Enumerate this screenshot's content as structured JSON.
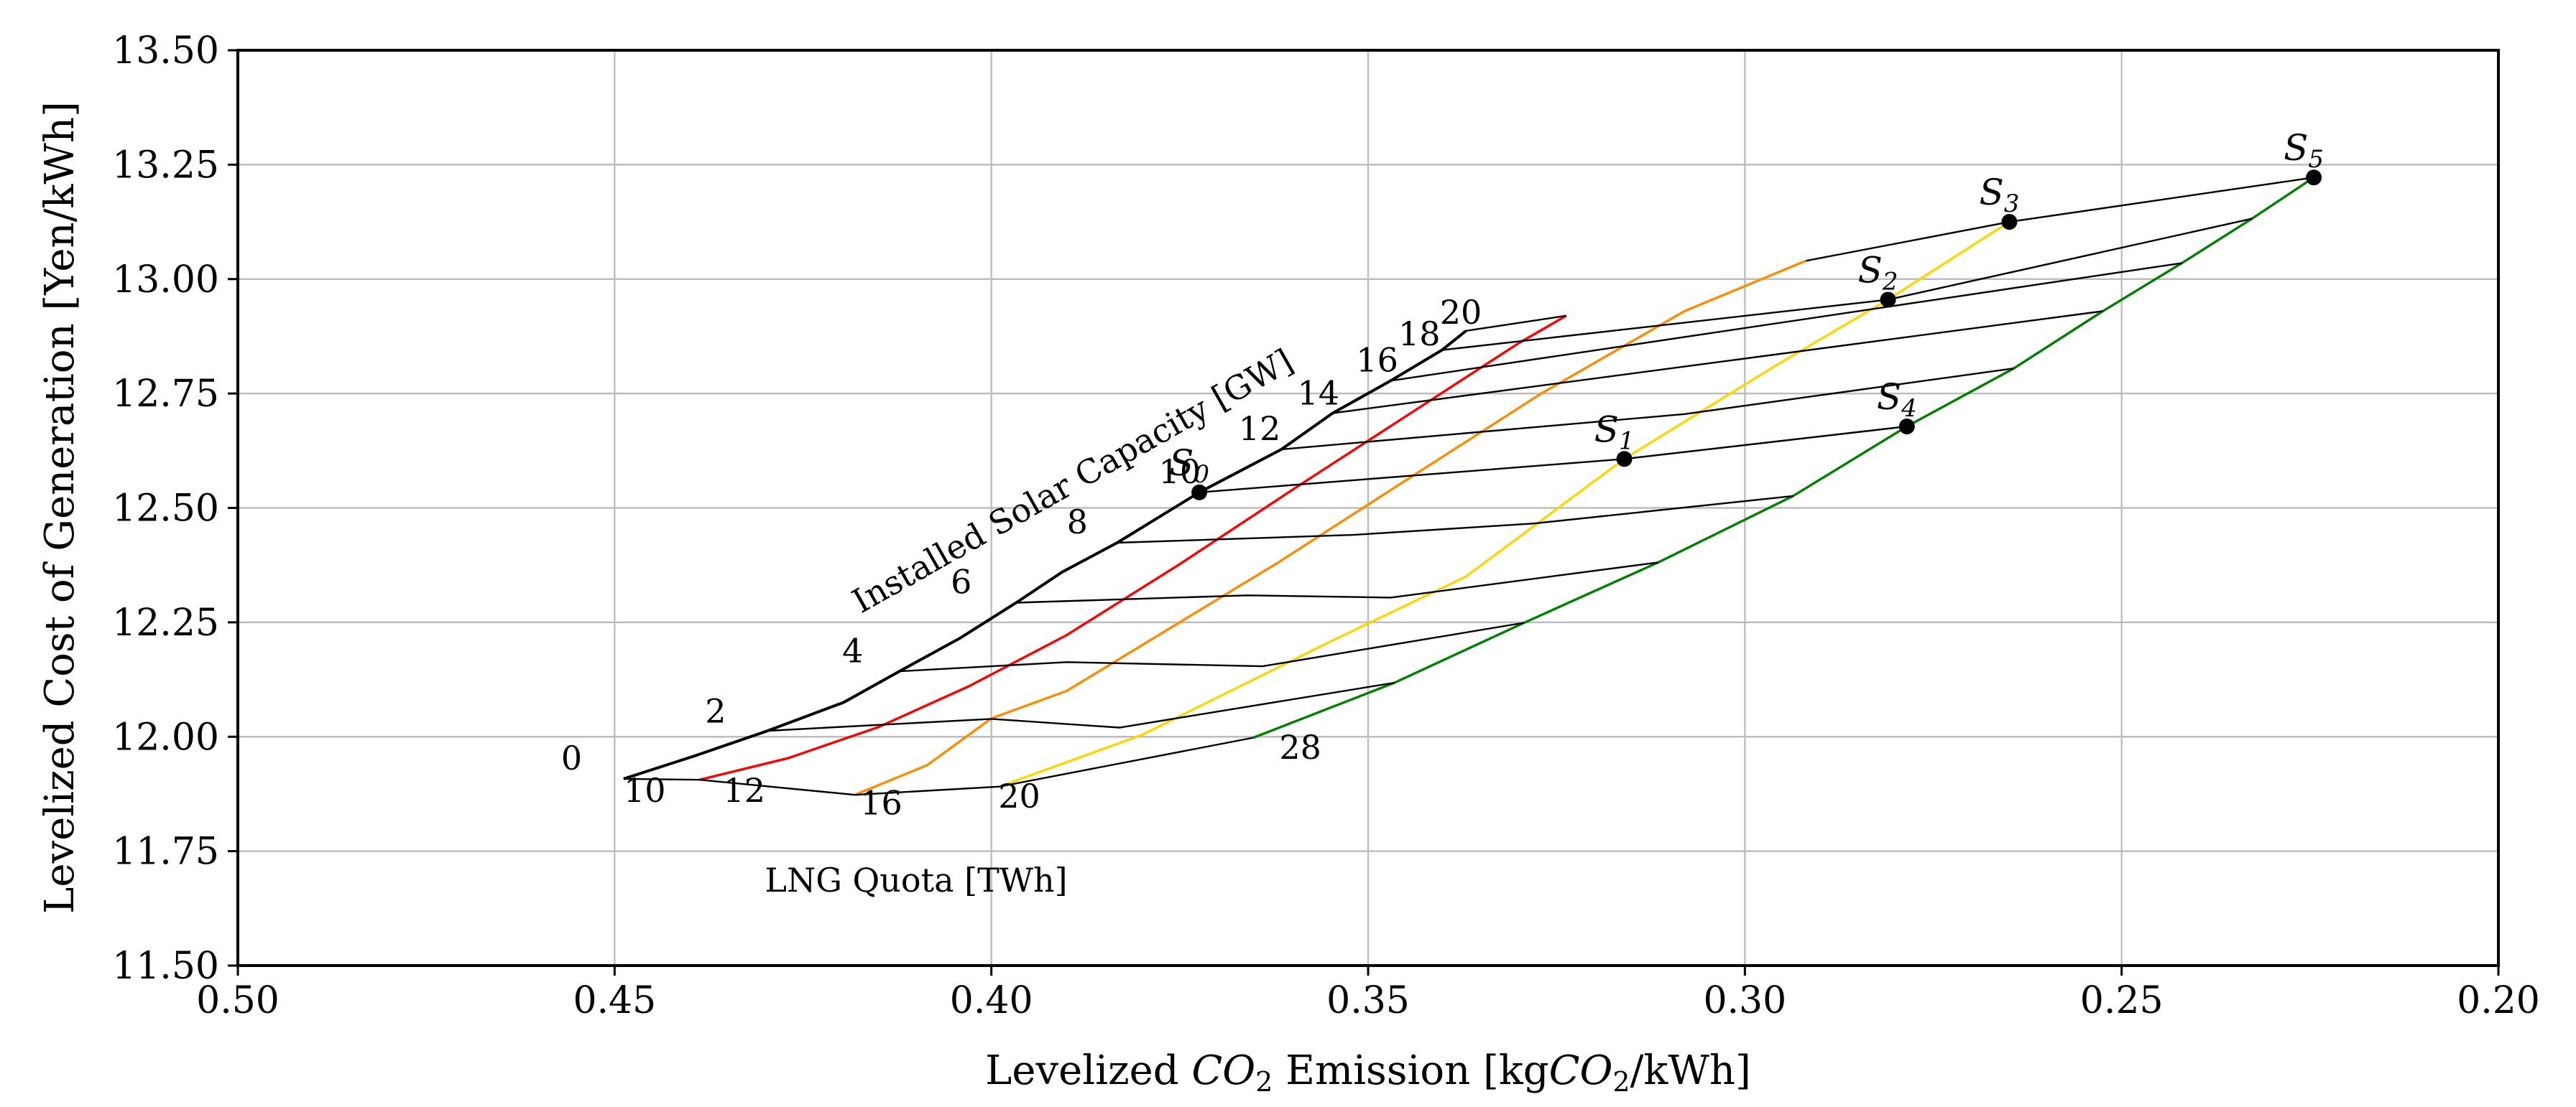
{
  "chart_data": {
    "type": "line",
    "xlabel": "Levelized CO2 Emission [kgCO2/kWh]",
    "xlabel_parts": {
      "a": "Levelized ",
      "b": "CO",
      "c": "2",
      "d": " Emission [kg",
      "e": "CO",
      "f": "2",
      "g": "/kWh]"
    },
    "ylabel": "Levelized Cost of Generation [Yen/kWh]",
    "xlim": [
      0.5,
      0.2
    ],
    "ylim": [
      11.5,
      13.5
    ],
    "xticks": [
      "0.50",
      "0.45",
      "0.40",
      "0.35",
      "0.30",
      "0.25",
      "0.20"
    ],
    "yticks": [
      "11.50",
      "11.75",
      "12.00",
      "12.25",
      "12.50",
      "12.75",
      "13.00",
      "13.25",
      "13.50"
    ],
    "grid": true,
    "solar_axis_label": "Installed Solar Capacity [GW]",
    "lng_axis_label": "LNG Quota [TWh]",
    "lng_quota_curves": [
      {
        "quota": "10",
        "color": "#000000",
        "points": [
          [
            0.4488,
            11.908
          ],
          [
            0.4394,
            11.958
          ],
          [
            0.4297,
            12.013
          ],
          [
            0.4196,
            12.075
          ],
          [
            0.4122,
            12.143
          ],
          [
            0.4042,
            12.215
          ],
          [
            0.3967,
            12.293
          ],
          [
            0.3906,
            12.36
          ],
          [
            0.3833,
            12.424
          ],
          [
            0.3724,
            12.534
          ],
          [
            0.3615,
            12.628
          ],
          [
            0.3547,
            12.707
          ],
          [
            0.347,
            12.778
          ],
          [
            0.3402,
            12.845
          ],
          [
            0.337,
            12.887
          ]
        ]
      },
      {
        "quota": "12",
        "color": "#ff0000",
        "points": [
          [
            0.4387,
            11.906
          ],
          [
            0.427,
            11.953
          ],
          [
            0.415,
            12.021
          ],
          [
            0.403,
            12.11
          ],
          [
            0.39,
            12.222
          ],
          [
            0.375,
            12.377
          ],
          [
            0.36,
            12.54
          ],
          [
            0.345,
            12.7
          ],
          [
            0.33,
            12.86
          ],
          [
            0.3237,
            12.92
          ]
        ]
      },
      {
        "quota": "16",
        "color": "#ff8c00",
        "points": [
          [
            0.4181,
            11.873
          ],
          [
            0.4085,
            11.938
          ],
          [
            0.4,
            12.04
          ],
          [
            0.39,
            12.1
          ],
          [
            0.378,
            12.22
          ],
          [
            0.362,
            12.38
          ],
          [
            0.345,
            12.56
          ],
          [
            0.327,
            12.75
          ],
          [
            0.308,
            12.93
          ],
          [
            0.2919,
            13.04
          ]
        ]
      },
      {
        "quota": "20",
        "color": "#ffd700",
        "points": [
          [
            0.3989,
            11.891
          ],
          [
            0.38,
            12.004
          ],
          [
            0.356,
            12.2
          ],
          [
            0.337,
            12.35
          ],
          [
            0.316,
            12.607
          ],
          [
            0.296,
            12.81
          ],
          [
            0.281,
            12.955
          ],
          [
            0.2649,
            13.125
          ]
        ]
      },
      {
        "quota": "28",
        "color": "#008000",
        "points": [
          [
            0.3652,
            11.998
          ],
          [
            0.3465,
            12.118
          ],
          [
            0.3293,
            12.249
          ],
          [
            0.3115,
            12.381
          ],
          [
            0.2936,
            12.526
          ],
          [
            0.2785,
            12.678
          ],
          [
            0.2643,
            12.805
          ],
          [
            0.2525,
            12.93
          ],
          [
            0.242,
            13.035
          ],
          [
            0.2327,
            13.132
          ],
          [
            0.2245,
            13.222
          ]
        ]
      }
    ],
    "solar_capacity_lines": [
      {
        "capacity": "0",
        "points": [
          [
            0.4488,
            11.908
          ],
          [
            0.4387,
            11.906
          ],
          [
            0.4181,
            11.873
          ],
          [
            0.3989,
            11.891
          ],
          [
            0.3652,
            11.998
          ]
        ]
      },
      {
        "capacity": "2",
        "points": [
          [
            0.4297,
            12.013
          ],
          [
            0.4,
            12.039
          ],
          [
            0.383,
            12.02
          ],
          [
            0.3465,
            12.118
          ]
        ]
      },
      {
        "capacity": "4",
        "points": [
          [
            0.4122,
            12.143
          ],
          [
            0.39,
            12.163
          ],
          [
            0.364,
            12.154
          ],
          [
            0.3293,
            12.249
          ]
        ]
      },
      {
        "capacity": "6",
        "points": [
          [
            0.3967,
            12.293
          ],
          [
            0.366,
            12.309
          ],
          [
            0.347,
            12.304
          ],
          [
            0.3115,
            12.381
          ]
        ]
      },
      {
        "capacity": "8",
        "points": [
          [
            0.3833,
            12.424
          ],
          [
            0.352,
            12.441
          ],
          [
            0.328,
            12.466
          ],
          [
            0.2936,
            12.526
          ]
        ]
      },
      {
        "capacity": "10",
        "points": [
          [
            0.3724,
            12.534
          ],
          [
            0.316,
            12.607
          ],
          [
            0.2785,
            12.678
          ]
        ]
      },
      {
        "capacity": "12",
        "points": [
          [
            0.3615,
            12.628
          ],
          [
            0.308,
            12.705
          ],
          [
            0.2643,
            12.805
          ]
        ]
      },
      {
        "capacity": "14",
        "points": [
          [
            0.3547,
            12.707
          ],
          [
            0.2525,
            12.93
          ]
        ]
      },
      {
        "capacity": "16",
        "points": [
          [
            0.347,
            12.778
          ],
          [
            0.242,
            13.035
          ]
        ]
      },
      {
        "capacity": "18",
        "points": [
          [
            0.3402,
            12.845
          ],
          [
            0.281,
            12.955
          ],
          [
            0.2327,
            13.132
          ]
        ]
      },
      {
        "capacity": "20",
        "points": [
          [
            0.337,
            12.887
          ],
          [
            0.3237,
            12.92
          ]
        ]
      },
      {
        "capacity": "20b",
        "points": [
          [
            0.2919,
            13.04
          ],
          [
            0.2649,
            13.125
          ],
          [
            0.2245,
            13.222
          ]
        ]
      }
    ],
    "solar_tick_labels": [
      {
        "text": "0",
        "x": 0.4557,
        "y": 11.928
      },
      {
        "text": "2",
        "x": 0.4366,
        "y": 12.031
      },
      {
        "text": "4",
        "x": 0.4184,
        "y": 12.163
      },
      {
        "text": "6",
        "x": 0.404,
        "y": 12.313
      },
      {
        "text": "8",
        "x": 0.3886,
        "y": 12.444
      },
      {
        "text": "10",
        "x": 0.375,
        "y": 12.554
      },
      {
        "text": "12",
        "x": 0.3644,
        "y": 12.648
      },
      {
        "text": "14",
        "x": 0.3566,
        "y": 12.726
      },
      {
        "text": "16",
        "x": 0.3488,
        "y": 12.798
      },
      {
        "text": "18",
        "x": 0.3432,
        "y": 12.855
      },
      {
        "text": "20",
        "x": 0.3377,
        "y": 12.902
      }
    ],
    "lng_tick_labels": [
      {
        "text": "10",
        "x": 0.446,
        "y": 11.858
      },
      {
        "text": "12",
        "x": 0.4328,
        "y": 11.858
      },
      {
        "text": "16",
        "x": 0.4146,
        "y": 11.83
      },
      {
        "text": "20",
        "x": 0.3963,
        "y": 11.845
      },
      {
        "text": "28",
        "x": 0.359,
        "y": 11.952
      }
    ],
    "scenarios": [
      {
        "name": "S",
        "sub": "0",
        "x": 0.3724,
        "y": 12.534
      },
      {
        "name": "S",
        "sub": "1",
        "x": 0.316,
        "y": 12.607
      },
      {
        "name": "S",
        "sub": "2",
        "x": 0.281,
        "y": 12.955
      },
      {
        "name": "S",
        "sub": "3",
        "x": 0.2649,
        "y": 13.125
      },
      {
        "name": "S",
        "sub": "4",
        "x": 0.2785,
        "y": 12.678
      },
      {
        "name": "S",
        "sub": "5",
        "x": 0.2245,
        "y": 13.222
      }
    ]
  }
}
